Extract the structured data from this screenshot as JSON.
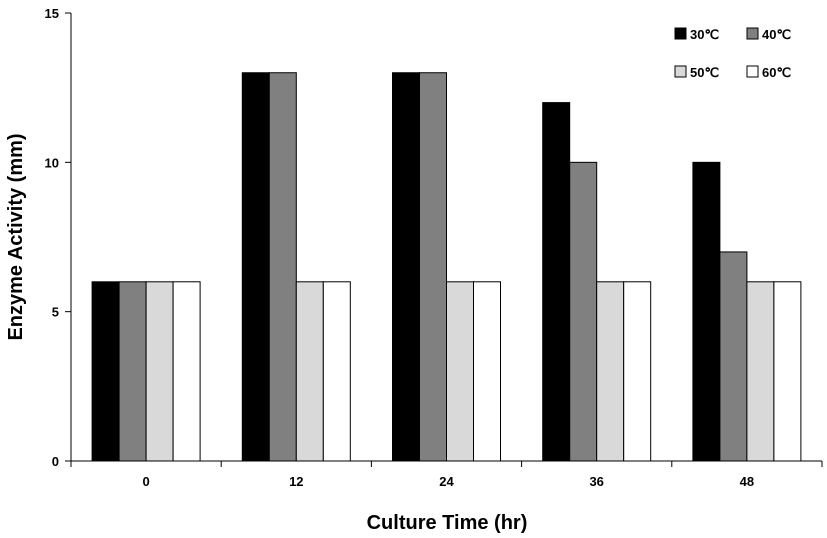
{
  "chart_data": {
    "type": "bar",
    "xlabel": "Culture Time (hr)",
    "ylabel": "Enzyme Activity (mm)",
    "categories": [
      "0",
      "12",
      "24",
      "36",
      "48"
    ],
    "ylim": [
      0,
      15
    ],
    "yticks": [
      0,
      5,
      10,
      15
    ],
    "grid": false,
    "legend_position": "top-right",
    "series": [
      {
        "name": "30℃",
        "color": "#000000",
        "values": [
          6,
          13,
          13,
          12,
          10
        ]
      },
      {
        "name": "40℃",
        "color": "#808080",
        "values": [
          6,
          13,
          13,
          10,
          7
        ]
      },
      {
        "name": "50℃",
        "color": "#d9d9d9",
        "values": [
          6,
          6,
          6,
          6,
          6
        ]
      },
      {
        "name": "60℃",
        "color": "#ffffff",
        "values": [
          6,
          6,
          6,
          6,
          6
        ]
      }
    ]
  }
}
